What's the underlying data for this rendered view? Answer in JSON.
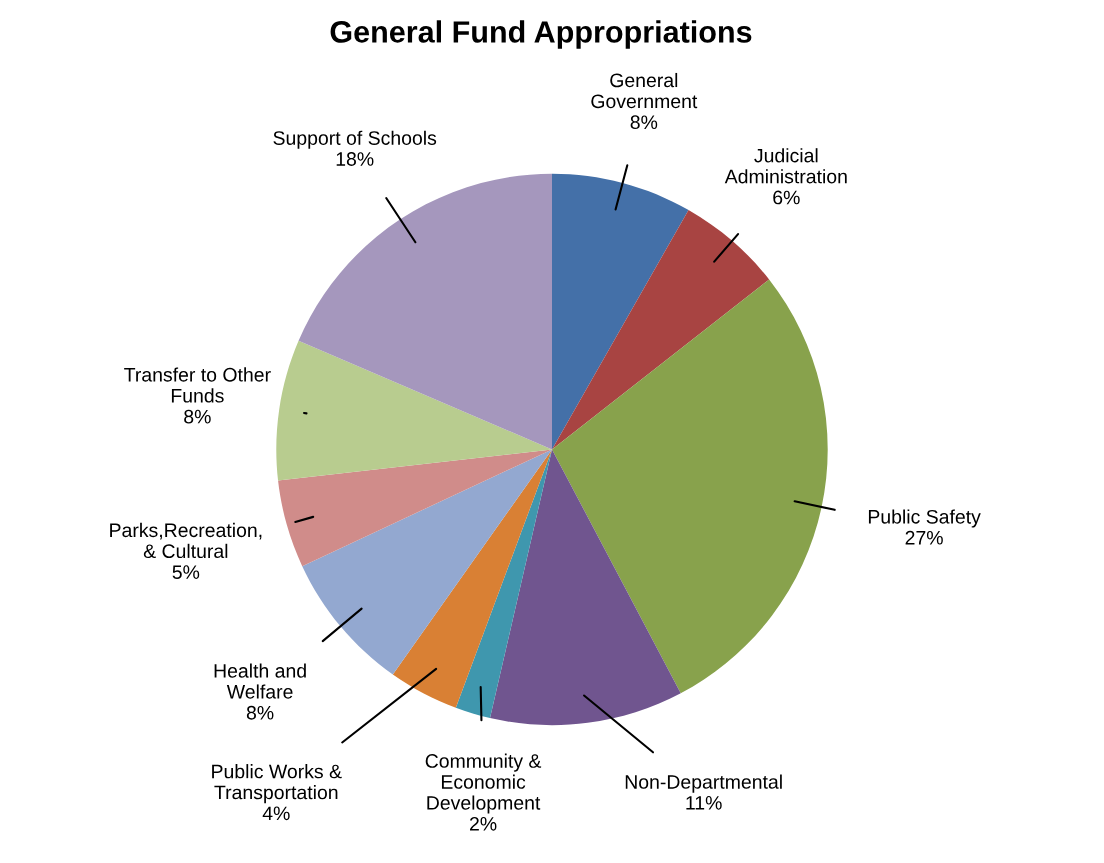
{
  "chart_data": {
    "type": "pie",
    "title": "General Fund Appropriations",
    "categories": [
      "General\nGovernment",
      "Judicial\nAdministration",
      "Public Safety",
      "Non-Departmental",
      "Community &\nEconomic\nDevelopment",
      "Public Works &\nTransportation",
      "Health and\nWelfare",
      "Parks,Recreation,\n& Cultural",
      "Transfer to Other\nFunds",
      "Support of Schools"
    ],
    "values": [
      8,
      6,
      27,
      11,
      2,
      4,
      8,
      5,
      8,
      18
    ],
    "value_labels": [
      "8%",
      "6%",
      "27%",
      "11%",
      "2%",
      "4%",
      "8%",
      "5%",
      "8%",
      "18%"
    ],
    "colors": [
      "#4470a8",
      "#a84442",
      "#88a24c",
      "#70558f",
      "#3f97ae",
      "#d98034",
      "#93a8d0",
      "#d08c8a",
      "#b8cc8f",
      "#a597bd"
    ],
    "legend": false
  }
}
